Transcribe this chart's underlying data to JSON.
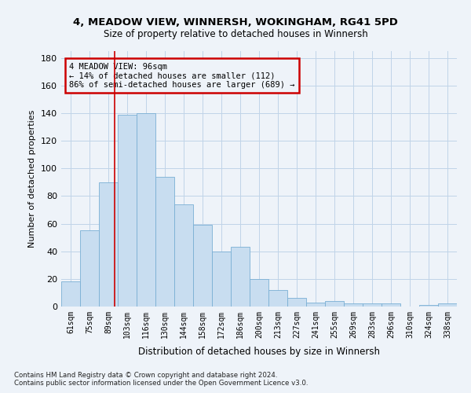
{
  "title1": "4, MEADOW VIEW, WINNERSH, WOKINGHAM, RG41 5PD",
  "title2": "Size of property relative to detached houses in Winnersh",
  "xlabel": "Distribution of detached houses by size in Winnersh",
  "ylabel": "Number of detached properties",
  "footnote1": "Contains HM Land Registry data © Crown copyright and database right 2024.",
  "footnote2": "Contains public sector information licensed under the Open Government Licence v3.0.",
  "bar_color": "#c8ddf0",
  "bar_edge_color": "#7aafd4",
  "annotation_box_color": "#cc0000",
  "vline_color": "#cc0000",
  "grid_color": "#c0d4e8",
  "categories": [
    "61sqm",
    "75sqm",
    "89sqm",
    "103sqm",
    "116sqm",
    "130sqm",
    "144sqm",
    "158sqm",
    "172sqm",
    "186sqm",
    "200sqm",
    "213sqm",
    "227sqm",
    "241sqm",
    "255sqm",
    "269sqm",
    "283sqm",
    "296sqm",
    "310sqm",
    "324sqm",
    "338sqm"
  ],
  "values": [
    18,
    55,
    90,
    139,
    140,
    94,
    74,
    59,
    40,
    43,
    20,
    12,
    6,
    3,
    4,
    2,
    2,
    2,
    0,
    1,
    2
  ],
  "annotation_line1": "4 MEADOW VIEW: 96sqm",
  "annotation_line2": "← 14% of detached houses are smaller (112)",
  "annotation_line3": "86% of semi-detached houses are larger (689) →",
  "vline_x_index": 2.35,
  "ylim": [
    0,
    185
  ],
  "yticks": [
    0,
    20,
    40,
    60,
    80,
    100,
    120,
    140,
    160,
    180
  ],
  "background_color": "#eef3f9"
}
